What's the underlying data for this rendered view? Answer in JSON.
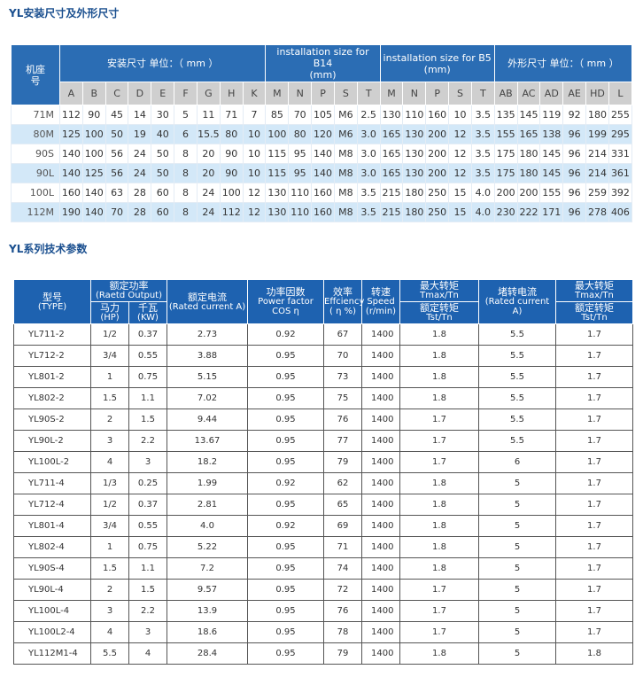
{
  "section1": {
    "title": "YL安装尺寸及外形尺寸",
    "table": {
      "corner": "机座号",
      "groups": [
        {
          "lines": [
            "安装尺寸 单位：（ mm ）"
          ],
          "columns": [
            "A",
            "B",
            "C",
            "D",
            "E",
            "F",
            "G",
            "H",
            "K"
          ]
        },
        {
          "lines": [
            "installation size for B14",
            "(mm)"
          ],
          "columns": [
            "M",
            "N",
            "P",
            "S",
            "T"
          ]
        },
        {
          "lines": [
            "installation size for B5",
            "(mm)"
          ],
          "columns": [
            "M",
            "N",
            "P",
            "S",
            "T"
          ]
        },
        {
          "lines": [
            "外形尺寸 单位：（ mm ）"
          ],
          "columns": [
            "AB",
            "AC",
            "AD",
            "AE",
            "HD",
            "L"
          ]
        }
      ],
      "rows": [
        [
          "71M",
          "112",
          "90",
          "45",
          "14",
          "30",
          "5",
          "11",
          "71",
          "7",
          "85",
          "70",
          "105",
          "M6",
          "2.5",
          "130",
          "110",
          "160",
          "10",
          "3.5",
          "135",
          "145",
          "119",
          "92",
          "180",
          "255"
        ],
        [
          "80M",
          "125",
          "100",
          "50",
          "19",
          "40",
          "6",
          "15.5",
          "80",
          "10",
          "100",
          "80",
          "120",
          "M6",
          "3.0",
          "165",
          "130",
          "200",
          "12",
          "3.5",
          "155",
          "165",
          "138",
          "96",
          "199",
          "295"
        ],
        [
          "90S",
          "140",
          "100",
          "56",
          "24",
          "50",
          "8",
          "20",
          "90",
          "10",
          "115",
          "95",
          "140",
          "M8",
          "3.0",
          "165",
          "130",
          "200",
          "12",
          "3.5",
          "175",
          "180",
          "145",
          "96",
          "214",
          "331"
        ],
        [
          "90L",
          "140",
          "125",
          "56",
          "24",
          "50",
          "8",
          "20",
          "90",
          "10",
          "115",
          "95",
          "140",
          "M8",
          "3.0",
          "165",
          "130",
          "200",
          "12",
          "3.5",
          "175",
          "180",
          "145",
          "96",
          "214",
          "361"
        ],
        [
          "100L",
          "160",
          "140",
          "63",
          "28",
          "60",
          "8",
          "24",
          "100",
          "12",
          "130",
          "110",
          "160",
          "M8",
          "3.5",
          "215",
          "180",
          "250",
          "15",
          "4.0",
          "200",
          "200",
          "155",
          "96",
          "259",
          "392"
        ],
        [
          "112M",
          "190",
          "140",
          "70",
          "28",
          "60",
          "8",
          "24",
          "112",
          "12",
          "130",
          "110",
          "160",
          "M8",
          "3.5",
          "215",
          "180",
          "250",
          "15",
          "4.0",
          "230",
          "222",
          "171",
          "96",
          "278",
          "406"
        ]
      ]
    }
  },
  "section2": {
    "title": "YL系列技术参数",
    "table": {
      "headers": {
        "type": [
          "型号",
          "(TYPE)"
        ],
        "output": [
          "额定功率",
          "(Raetd Output)"
        ],
        "hp": [
          "马力",
          "(HP)"
        ],
        "kw": [
          "千瓦",
          "(KW)"
        ],
        "current": [
          "额定电流",
          "(Rated current A)"
        ],
        "pf": [
          "功率因数",
          "Power factor",
          "COS η"
        ],
        "eff": [
          "效率",
          "Effciency",
          "( η %)"
        ],
        "speed": [
          "转速",
          "Speed",
          "(r/min)"
        ],
        "tmax": [
          "最大转矩",
          "Tmax/Tn"
        ],
        "tst": [
          "额定转矩",
          "Tst/Tn"
        ],
        "stall": [
          "堵转电流",
          "(Rated current A)"
        ],
        "tmax2": [
          "最大转矩",
          "Tmax/Tn"
        ],
        "tst2": [
          "额定转矩",
          "Tst/Tn"
        ]
      },
      "rows": [
        [
          "YL711-2",
          "1/2",
          "0.37",
          "2.73",
          "0.92",
          "67",
          "1400",
          "1.8",
          "5.5",
          "1.7"
        ],
        [
          "YL712-2",
          "3/4",
          "0.55",
          "3.88",
          "0.95",
          "70",
          "1400",
          "1.8",
          "5.5",
          "1.7"
        ],
        [
          "YL801-2",
          "1",
          "0.75",
          "5.15",
          "0.95",
          "73",
          "1400",
          "1.8",
          "5.5",
          "1.7"
        ],
        [
          "YL802-2",
          "1.5",
          "1.1",
          "7.02",
          "0.95",
          "75",
          "1400",
          "1.8",
          "5.5",
          "1.7"
        ],
        [
          "YL90S-2",
          "2",
          "1.5",
          "9.44",
          "0.95",
          "76",
          "1400",
          "1.7",
          "5.5",
          "1.7"
        ],
        [
          "YL90L-2",
          "3",
          "2.2",
          "13.67",
          "0.95",
          "77",
          "1400",
          "1.7",
          "5.5",
          "1.7"
        ],
        [
          "YL100L-2",
          "4",
          "3",
          "18.2",
          "0.95",
          "79",
          "1400",
          "1.7",
          "6",
          "1.7"
        ],
        [
          "YL711-4",
          "1/3",
          "0.25",
          "1.99",
          "0.92",
          "62",
          "1400",
          "1.8",
          "5",
          "1.7"
        ],
        [
          "YL712-4",
          "1/2",
          "0.37",
          "2.81",
          "0.95",
          "65",
          "1400",
          "1.8",
          "5",
          "1.7"
        ],
        [
          "YL801-4",
          "3/4",
          "0.55",
          "4.0",
          "0.92",
          "69",
          "1400",
          "1.8",
          "5",
          "1.7"
        ],
        [
          "YL802-4",
          "1",
          "0.75",
          "5.22",
          "0.95",
          "71",
          "1400",
          "1.8",
          "5",
          "1.7"
        ],
        [
          "YL90S-4",
          "1.5",
          "1.1",
          "7.2",
          "0.95",
          "74",
          "1400",
          "1.8",
          "5",
          "1.7"
        ],
        [
          "YL90L-4",
          "2",
          "1.5",
          "9.57",
          "0.95",
          "72",
          "1400",
          "1.7",
          "5",
          "1.7"
        ],
        [
          "YL100L-4",
          "3",
          "2.2",
          "13.9",
          "0.95",
          "76",
          "1400",
          "1.7",
          "5",
          "1.7"
        ],
        [
          "YL100L2-4",
          "4",
          "3",
          "18.6",
          "0.95",
          "78",
          "1400",
          "1.7",
          "5",
          "1.7"
        ],
        [
          "YL112M1-4",
          "5.5",
          "4",
          "28.4",
          "0.95",
          "79",
          "1400",
          "1.8",
          "5",
          "1.8"
        ]
      ]
    }
  }
}
